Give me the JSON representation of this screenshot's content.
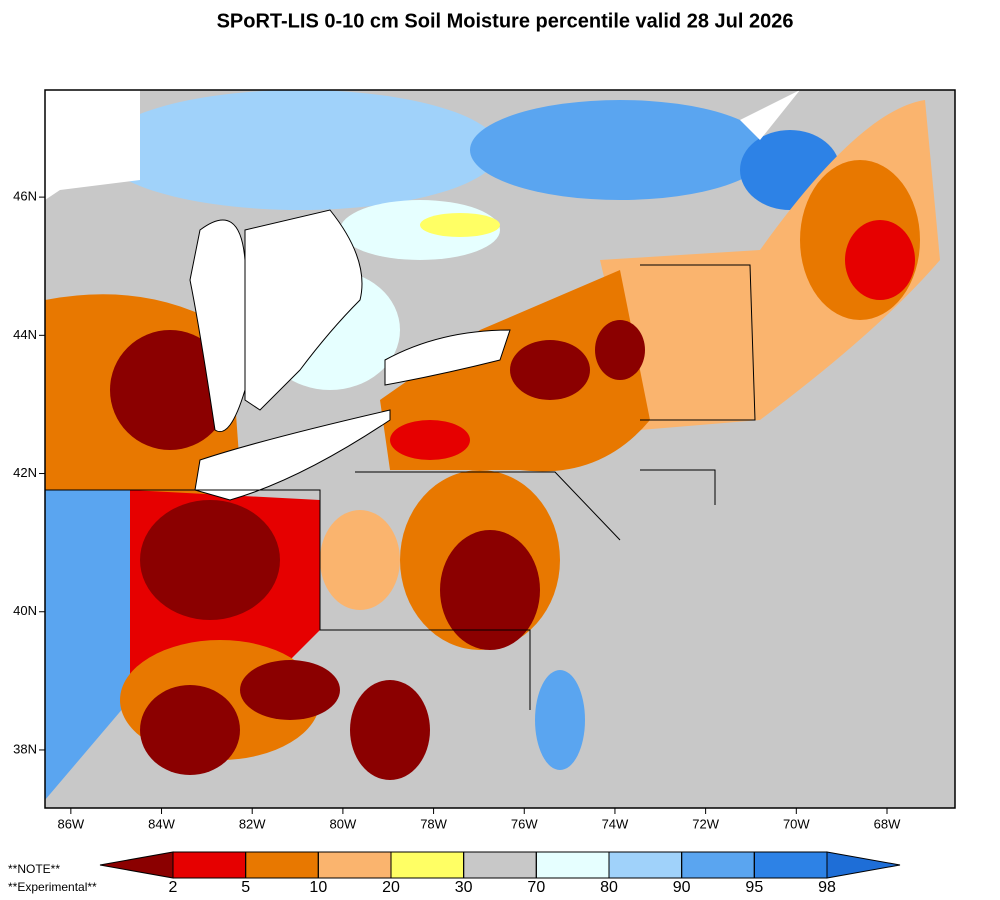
{
  "map": {
    "title": "SPoRT-LIS 0-10 cm Soil Moisture percentile valid 28 Jul 2026",
    "lonlim": [
      -86.57,
      -66.5
    ],
    "latlim": [
      37.16,
      47.55
    ],
    "lon_ticks": [
      {
        "value": -86,
        "label": "86W"
      },
      {
        "value": -84,
        "label": "84W"
      },
      {
        "value": -82,
        "label": "82W"
      },
      {
        "value": -80,
        "label": "80W"
      },
      {
        "value": -78,
        "label": "78W"
      },
      {
        "value": -76,
        "label": "76W"
      },
      {
        "value": -74,
        "label": "74W"
      },
      {
        "value": -72,
        "label": "72W"
      },
      {
        "value": -70,
        "label": "70W"
      },
      {
        "value": -68,
        "label": "68W"
      }
    ],
    "lat_ticks": [
      {
        "value": 38,
        "label": "38N"
      },
      {
        "value": 40,
        "label": "40N"
      },
      {
        "value": 42,
        "label": "42N"
      },
      {
        "value": 44,
        "label": "44N"
      },
      {
        "value": 46,
        "label": "46N"
      }
    ],
    "colorbar": {
      "boundaries": [
        2,
        5,
        10,
        20,
        30,
        70,
        80,
        90,
        95,
        98
      ],
      "colors": [
        "#8b0000",
        "#e60000",
        "#e87800",
        "#fab46e",
        "#ffff64",
        "#c8c8c8",
        "#e6ffff",
        "#a0d2fa",
        "#5aa5f0",
        "#2d82e6",
        "#1e6ed7"
      ]
    },
    "notes": [
      "**NOTE**",
      "**Experimental**"
    ]
  }
}
